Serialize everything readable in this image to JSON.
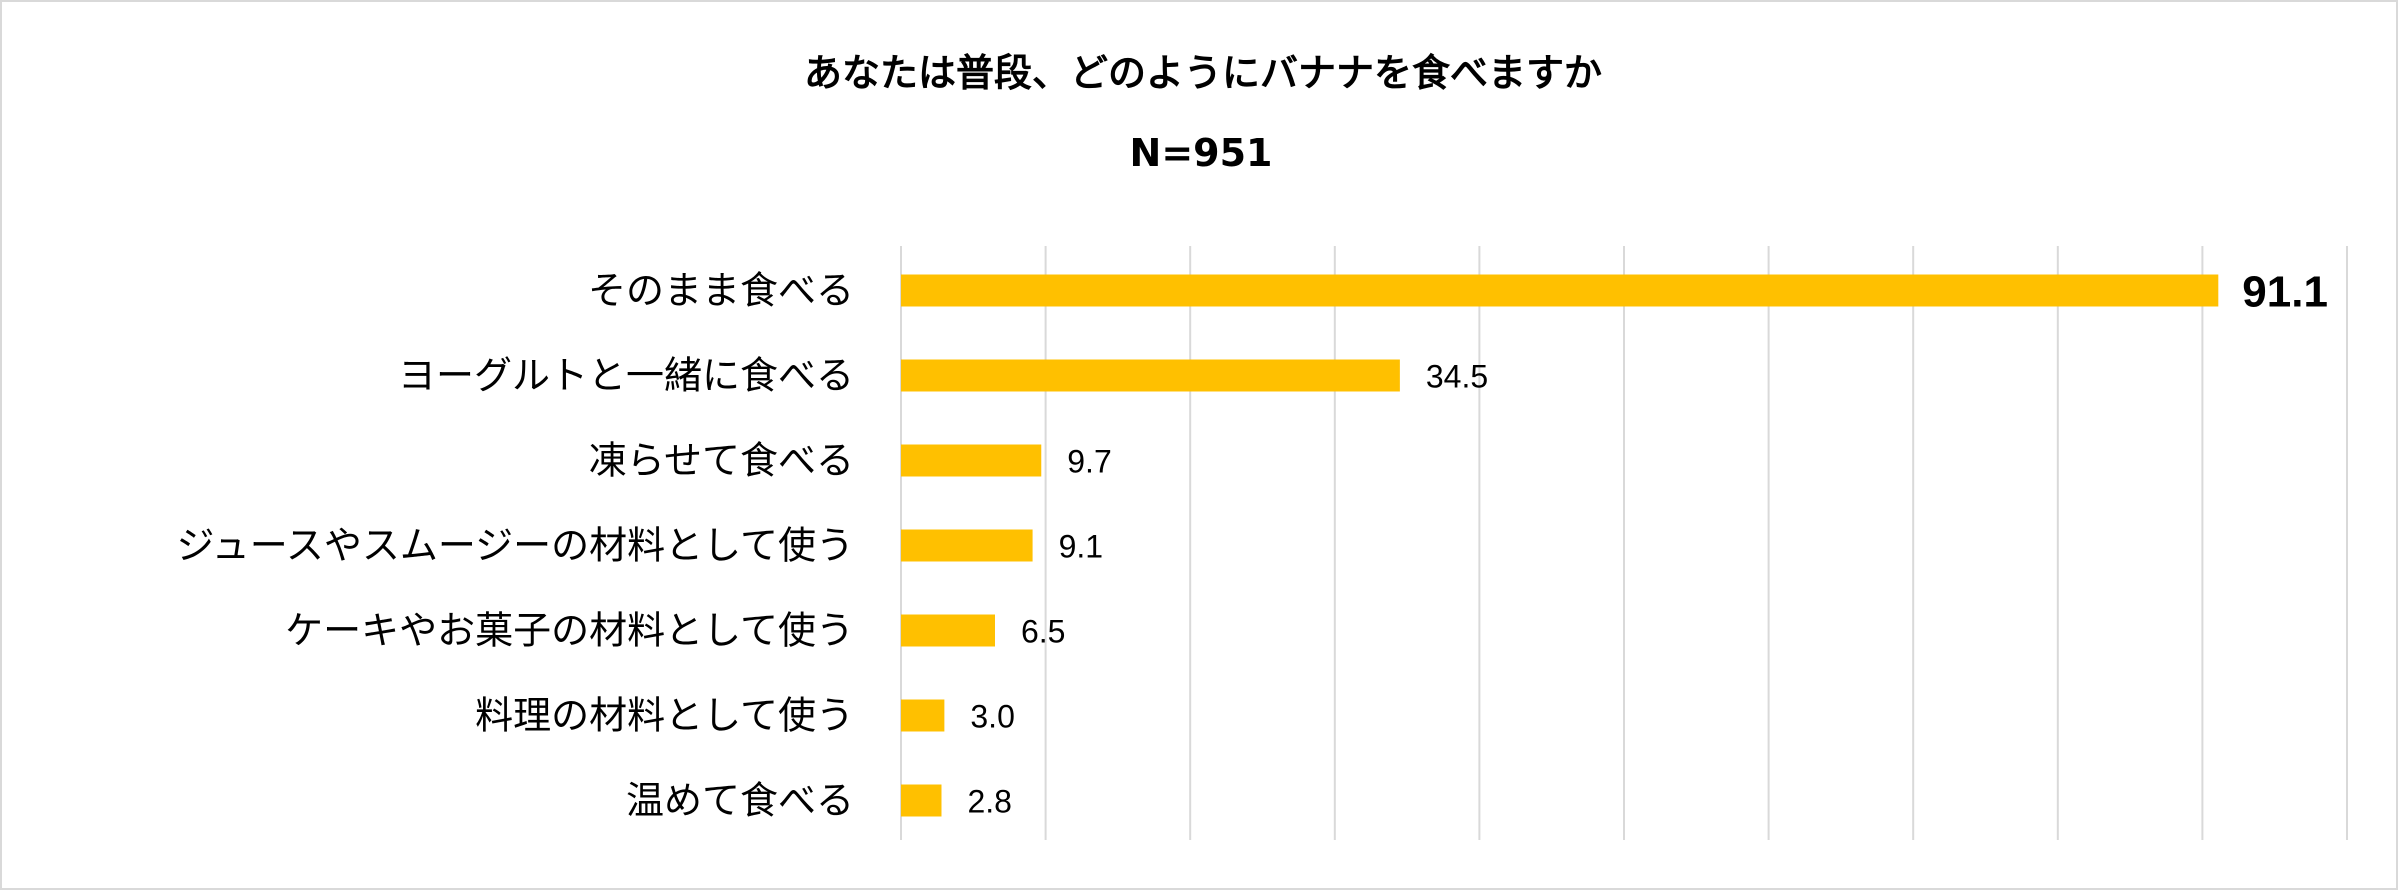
{
  "chart_data": {
    "type": "bar",
    "orientation": "horizontal",
    "title": "あなたは普段、どのようにバナナを食べますか",
    "subtitle": "N=951",
    "categories": [
      "そのまま食べる",
      "ヨーグルトと一緒に食べる",
      "凍らせて食べる",
      "ジュースやスムージーの材料として使う",
      "ケーキやお菓子の材料として使う",
      "料理の材料として使う",
      "温めて食べる"
    ],
    "values": [
      91.1,
      34.5,
      9.7,
      9.1,
      6.5,
      3.0,
      2.8
    ],
    "value_labels": [
      "91.1",
      "34.5",
      "9.7",
      "9.1",
      "6.5",
      "3.0",
      "2.8"
    ],
    "xlim": [
      0,
      100
    ],
    "x_gridlines": [
      0,
      10,
      20,
      30,
      40,
      50,
      60,
      70,
      80,
      90,
      100
    ],
    "grid": true,
    "bar_color": "#FFC000",
    "grid_color": "#D9D9D9",
    "highlight_first_label": true
  }
}
